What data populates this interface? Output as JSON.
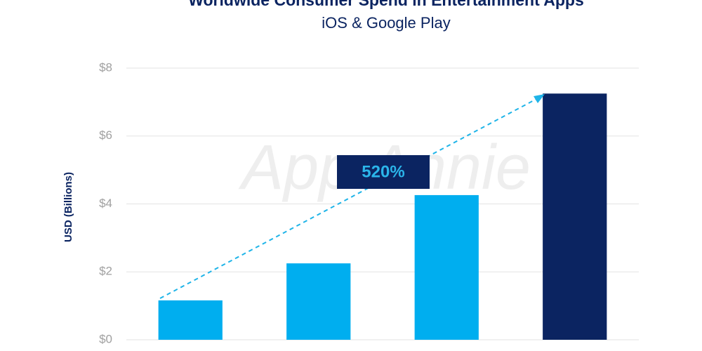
{
  "chart_data": {
    "type": "bar",
    "title": "Worldwide Consumer Spend in Entertainment Apps",
    "subtitle": "iOS & Google Play",
    "y_label": "USD (Billions)",
    "annotation": "520%",
    "watermark": "App Annie",
    "values": [
      1.16,
      2.25,
      4.26,
      7.25
    ],
    "colors": [
      "#00aeef",
      "#00aeef",
      "#00aeef",
      "#0b2461"
    ],
    "ylim": [
      0,
      8
    ],
    "yticks": [
      {
        "value": 0,
        "label": "$0"
      },
      {
        "value": 2,
        "label": "$2"
      },
      {
        "value": 4,
        "label": "$4"
      },
      {
        "value": 6,
        "label": "$6"
      },
      {
        "value": 8,
        "label": "$8"
      }
    ],
    "grid": true
  }
}
